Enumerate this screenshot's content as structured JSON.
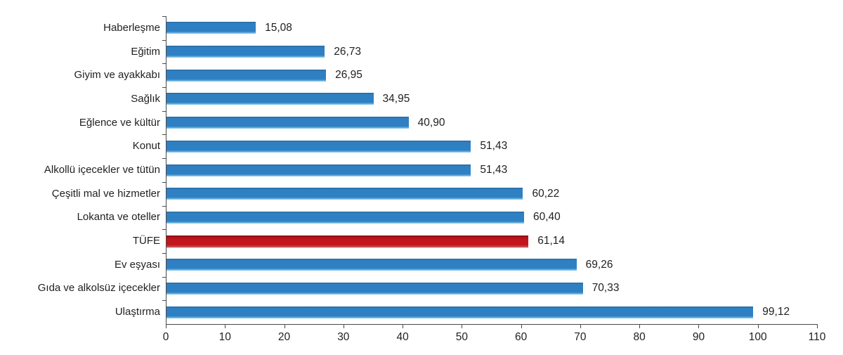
{
  "chart_data": {
    "type": "bar",
    "orientation": "horizontal",
    "title": "",
    "xlabel": "",
    "ylabel": "",
    "grid": false,
    "legend": false,
    "xlim": [
      0,
      110
    ],
    "x_ticks": [
      "0",
      "10",
      "20",
      "30",
      "40",
      "50",
      "60",
      "70",
      "80",
      "90",
      "100",
      "110"
    ],
    "x_tick_values": [
      0,
      10,
      20,
      30,
      40,
      50,
      60,
      70,
      80,
      90,
      100,
      110
    ],
    "categories": [
      "Haberleşme",
      "Eğitim",
      "Giyim ve ayakkabı",
      "Sağlık",
      "Eğlence ve kültür",
      "Konut",
      "Alkollü içecekler ve tütün",
      "Çeşitli mal ve hizmetler",
      "Lokanta ve oteller",
      "TÜFE",
      "Ev eşyası",
      "Gıda ve alkolsüz içecekler",
      "Ulaştırma"
    ],
    "values": [
      15.08,
      26.73,
      26.95,
      34.95,
      40.9,
      51.43,
      51.43,
      60.22,
      60.4,
      61.14,
      69.26,
      70.33,
      99.12
    ],
    "value_labels": [
      "15,08",
      "26,73",
      "26,95",
      "34,95",
      "40,90",
      "51,43",
      "51,43",
      "60,22",
      "60,40",
      "61,14",
      "69,26",
      "70,33",
      "99,12"
    ],
    "highlight_category": "TÜFE",
    "colors": {
      "bar": "#2f80c2",
      "highlight": "#c2151c",
      "axis": "#4a4a4a",
      "text": "#1f1f1f"
    }
  }
}
